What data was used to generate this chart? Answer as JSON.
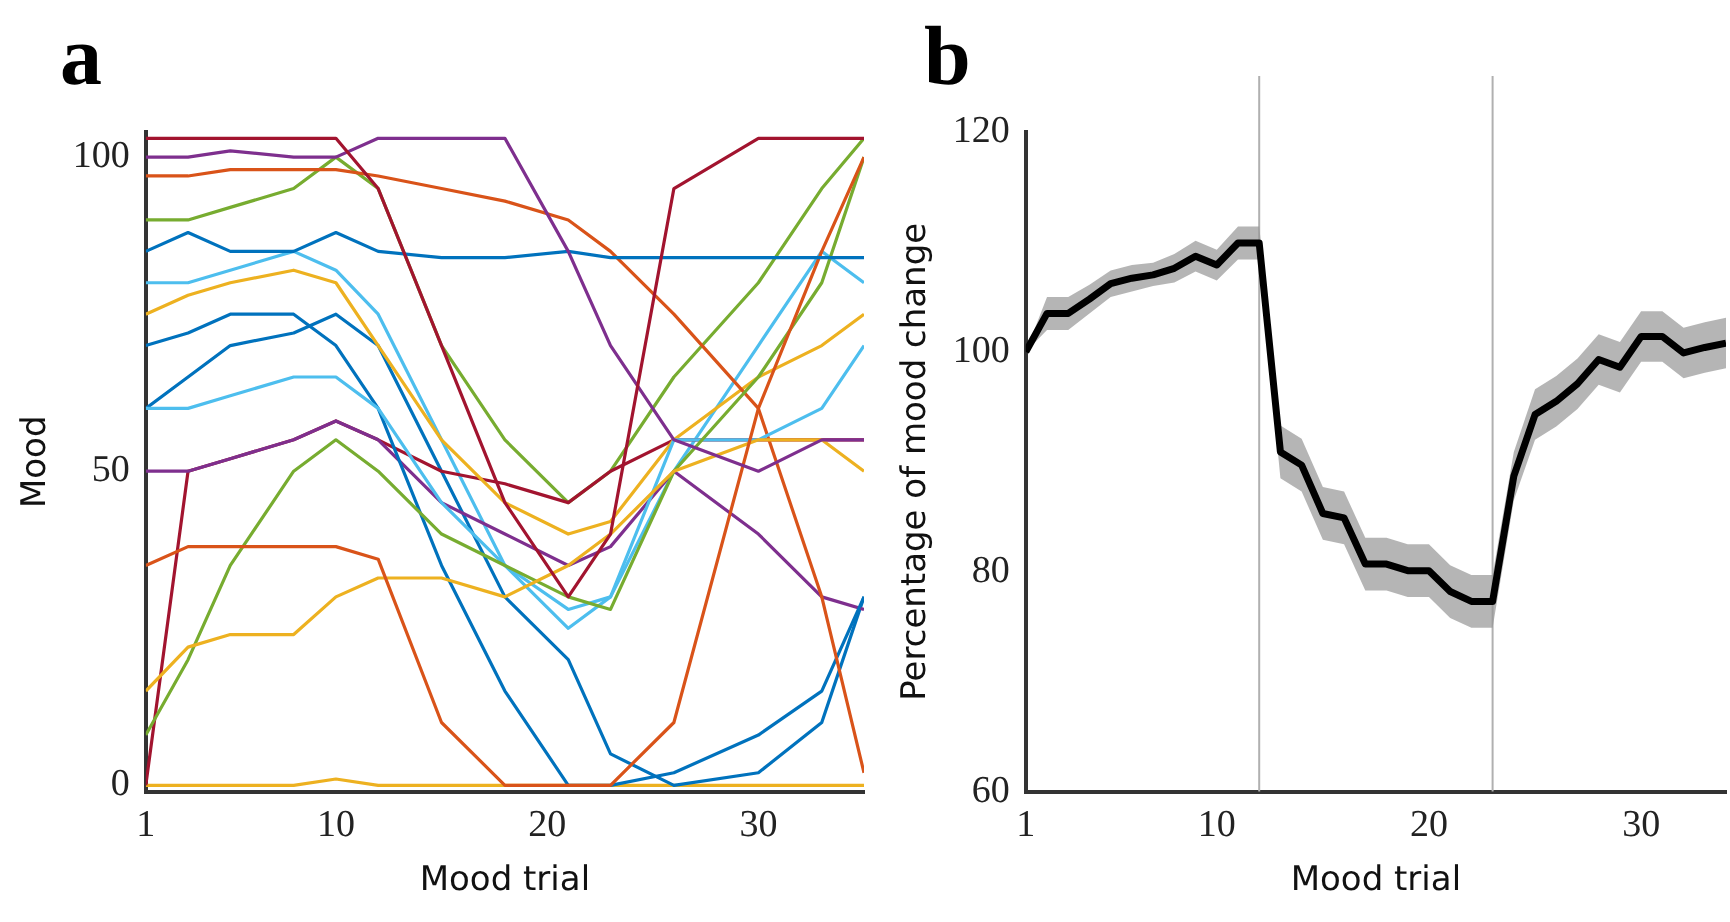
{
  "chart_data": [
    {
      "type": "line",
      "title": "a",
      "xlabel": "Mood trial",
      "ylabel": "Mood",
      "xlim": [
        1,
        35
      ],
      "xticks": [
        1,
        10,
        20,
        30
      ],
      "ylim": [
        -1,
        104
      ],
      "yticks": [
        0,
        50,
        100
      ],
      "grid": false,
      "legend": false,
      "marker": "none",
      "line_style": "solid",
      "x": [
        1,
        3,
        5,
        8,
        10,
        12,
        15,
        18,
        21,
        23,
        26,
        30,
        33,
        35
      ],
      "series": [
        {
          "color": "#a2142f",
          "values": [
            103,
            103,
            103,
            103,
            103,
            95,
            70,
            45,
            30,
            40,
            95,
            103,
            103,
            103
          ]
        },
        {
          "color": "#7e2f8e",
          "values": [
            100,
            100,
            101,
            100,
            100,
            103,
            103,
            103,
            85,
            70,
            55,
            50,
            55,
            55
          ]
        },
        {
          "color": "#0072bd",
          "values": [
            85,
            88,
            85,
            85,
            88,
            85,
            84,
            84,
            85,
            84,
            84,
            84,
            84,
            84
          ]
        },
        {
          "color": "#d95319",
          "values": [
            35,
            38,
            38,
            38,
            38,
            36,
            10,
            0,
            0,
            0,
            10,
            60,
            85,
            100
          ]
        },
        {
          "color": "#edb120",
          "values": [
            15,
            22,
            24,
            24,
            30,
            33,
            33,
            30,
            35,
            40,
            50,
            55,
            55,
            50
          ]
        },
        {
          "color": "#77ac30",
          "values": [
            8,
            20,
            35,
            50,
            55,
            50,
            40,
            35,
            30,
            28,
            50,
            65,
            80,
            100
          ]
        },
        {
          "color": "#4dbeee",
          "values": [
            60,
            60,
            62,
            65,
            65,
            60,
            45,
            35,
            28,
            30,
            55,
            55,
            60,
            70
          ]
        },
        {
          "color": "#d95319",
          "values": [
            97,
            97,
            98,
            98,
            98,
            97,
            95,
            93,
            90,
            85,
            75,
            60,
            30,
            2
          ]
        },
        {
          "color": "#0072bd",
          "values": [
            70,
            72,
            75,
            75,
            70,
            60,
            35,
            15,
            0,
            0,
            2,
            8,
            15,
            30
          ]
        },
        {
          "color": "#edb120",
          "values": [
            75,
            78,
            80,
            82,
            80,
            70,
            55,
            45,
            40,
            42,
            55,
            65,
            70,
            75
          ]
        },
        {
          "color": "#7e2f8e",
          "values": [
            50,
            50,
            52,
            55,
            58,
            55,
            45,
            40,
            35,
            38,
            50,
            40,
            30,
            28
          ]
        },
        {
          "color": "#a2142f",
          "values": [
            0,
            50,
            52,
            55,
            58,
            55,
            50,
            48,
            45,
            50,
            55,
            55,
            55,
            55
          ]
        },
        {
          "color": "#77ac30",
          "values": [
            90,
            90,
            92,
            95,
            100,
            95,
            70,
            55,
            45,
            50,
            65,
            80,
            95,
            103
          ]
        },
        {
          "color": "#4dbeee",
          "values": [
            80,
            80,
            82,
            85,
            82,
            75,
            55,
            35,
            25,
            30,
            50,
            70,
            85,
            80
          ]
        },
        {
          "color": "#0072bd",
          "values": [
            60,
            65,
            70,
            72,
            75,
            70,
            50,
            30,
            20,
            5,
            0,
            2,
            10,
            30
          ]
        },
        {
          "color": "#edb120",
          "values": [
            0,
            0,
            0,
            0,
            1,
            0,
            0,
            0,
            0,
            0,
            0,
            0,
            0,
            0
          ]
        }
      ]
    },
    {
      "type": "line",
      "title": "b",
      "xlabel": "Mood trial",
      "ylabel": "Percentage of mood change",
      "xlim": [
        1,
        34
      ],
      "xticks": [
        1,
        10,
        20,
        30
      ],
      "ylim": [
        60,
        120
      ],
      "yticks": [
        60,
        80,
        100,
        120
      ],
      "grid": false,
      "legend": false,
      "marker": "none",
      "line_style": "solid",
      "x": [
        1,
        2,
        3,
        4,
        5,
        6,
        7,
        8,
        9,
        10,
        11,
        12,
        13,
        14,
        15,
        16,
        17,
        18,
        19,
        20,
        21,
        22,
        23,
        24,
        25,
        26,
        27,
        28,
        29,
        30,
        31,
        32,
        33,
        34
      ],
      "ref_lines": [
        {
          "axis": "x",
          "value": 12,
          "color": "#b0b0b0"
        },
        {
          "axis": "x",
          "value": 23,
          "color": "#b0b0b0"
        }
      ],
      "series": [
        {
          "color": "#000000",
          "values": [
            100,
            103.5,
            103.5,
            104.8,
            106.2,
            106.7,
            107,
            107.6,
            108.7,
            107.9,
            109.9,
            109.9,
            90.9,
            89.7,
            85.3,
            84.9,
            80.7,
            80.7,
            80.1,
            80.1,
            78.2,
            77.3,
            77.3,
            88.7,
            94.3,
            95.5,
            97.1,
            99.3,
            98.6,
            101.4,
            101.4,
            99.9,
            100.4,
            100.8
          ],
          "lower": [
            100,
            102,
            102,
            103.5,
            105,
            105.5,
            106,
            106.3,
            107.3,
            106.5,
            108.4,
            108.4,
            88.5,
            87.3,
            82.9,
            82.5,
            78.3,
            78.3,
            77.7,
            77.7,
            75.8,
            74.9,
            74.9,
            86.5,
            92,
            93.2,
            94.8,
            97,
            96.3,
            99.1,
            99.1,
            97.6,
            98.1,
            98.5
          ],
          "upper": [
            100,
            105,
            105,
            106.1,
            107.4,
            107.9,
            108.1,
            108.9,
            110.1,
            109.3,
            111.4,
            111.4,
            93.3,
            92.1,
            87.7,
            87.3,
            83.1,
            83.1,
            82.5,
            82.5,
            80.6,
            79.7,
            79.7,
            90.9,
            96.6,
            97.8,
            99.4,
            101.6,
            100.9,
            103.7,
            103.7,
            102.2,
            102.7,
            103.1
          ]
        }
      ]
    }
  ]
}
